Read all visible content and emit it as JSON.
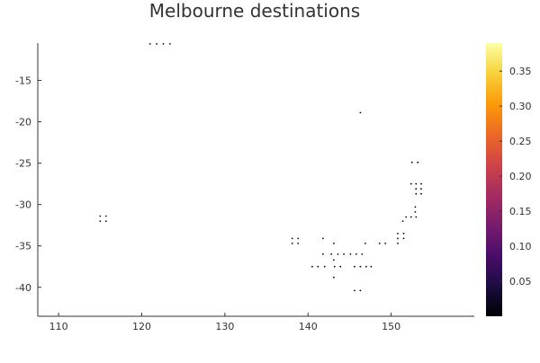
{
  "chart_data": {
    "type": "scatter",
    "title": "Melbourne destinations",
    "xlabel": "",
    "ylabel": "",
    "xlim": [
      107.5,
      160
    ],
    "ylim": [
      -43.5,
      -10.5
    ],
    "xticks": [
      110,
      120,
      130,
      140,
      150
    ],
    "yticks": [
      -15,
      -20,
      -25,
      -30,
      -35,
      -40
    ],
    "xtick_labels": [
      "110",
      "120",
      "130",
      "140",
      "150"
    ],
    "ytick_labels": [
      "-15",
      "-20",
      "-25",
      "-30",
      "-35",
      "-40"
    ],
    "grid": false,
    "legend": "none",
    "marker_color": "#000000",
    "points": [
      {
        "x": 121.0,
        "y": -10.6
      },
      {
        "x": 121.8,
        "y": -10.6
      },
      {
        "x": 122.6,
        "y": -10.6
      },
      {
        "x": 123.4,
        "y": -10.6
      },
      {
        "x": 146.3,
        "y": -18.9
      },
      {
        "x": 152.5,
        "y": -24.9
      },
      {
        "x": 153.2,
        "y": -24.9
      },
      {
        "x": 152.4,
        "y": -27.5
      },
      {
        "x": 153.0,
        "y": -27.5
      },
      {
        "x": 153.6,
        "y": -27.5
      },
      {
        "x": 153.0,
        "y": -28.1
      },
      {
        "x": 153.6,
        "y": -28.1
      },
      {
        "x": 153.0,
        "y": -28.7
      },
      {
        "x": 153.6,
        "y": -28.7
      },
      {
        "x": 152.9,
        "y": -30.3
      },
      {
        "x": 152.9,
        "y": -30.9
      },
      {
        "x": 151.8,
        "y": -31.5
      },
      {
        "x": 152.4,
        "y": -31.5
      },
      {
        "x": 153.0,
        "y": -31.5
      },
      {
        "x": 151.4,
        "y": -32.0
      },
      {
        "x": 115.0,
        "y": -31.4
      },
      {
        "x": 115.7,
        "y": -31.4
      },
      {
        "x": 115.0,
        "y": -32.0
      },
      {
        "x": 115.7,
        "y": -32.0
      },
      {
        "x": 150.8,
        "y": -33.5
      },
      {
        "x": 151.5,
        "y": -33.5
      },
      {
        "x": 150.8,
        "y": -34.1
      },
      {
        "x": 151.5,
        "y": -34.1
      },
      {
        "x": 138.1,
        "y": -34.1
      },
      {
        "x": 138.8,
        "y": -34.1
      },
      {
        "x": 141.8,
        "y": -34.1
      },
      {
        "x": 150.8,
        "y": -34.7
      },
      {
        "x": 138.1,
        "y": -34.7
      },
      {
        "x": 138.8,
        "y": -34.7
      },
      {
        "x": 143.1,
        "y": -34.7
      },
      {
        "x": 146.9,
        "y": -34.7
      },
      {
        "x": 148.6,
        "y": -34.7
      },
      {
        "x": 149.3,
        "y": -34.7
      },
      {
        "x": 141.8,
        "y": -36.0
      },
      {
        "x": 142.8,
        "y": -36.0
      },
      {
        "x": 143.6,
        "y": -36.0
      },
      {
        "x": 144.3,
        "y": -36.0
      },
      {
        "x": 145.1,
        "y": -36.0
      },
      {
        "x": 145.8,
        "y": -36.0
      },
      {
        "x": 146.5,
        "y": -36.0
      },
      {
        "x": 143.1,
        "y": -36.7
      },
      {
        "x": 140.5,
        "y": -37.5
      },
      {
        "x": 141.2,
        "y": -37.5
      },
      {
        "x": 142.0,
        "y": -37.5
      },
      {
        "x": 143.2,
        "y": -37.5
      },
      {
        "x": 143.9,
        "y": -37.5
      },
      {
        "x": 145.6,
        "y": -37.5
      },
      {
        "x": 146.3,
        "y": -37.5
      },
      {
        "x": 147.0,
        "y": -37.5
      },
      {
        "x": 147.6,
        "y": -37.5
      },
      {
        "x": 143.1,
        "y": -38.8
      },
      {
        "x": 145.6,
        "y": -40.4
      },
      {
        "x": 146.3,
        "y": -40.4
      }
    ],
    "colorbar": {
      "range": [
        0,
        0.39
      ],
      "ticks": [
        0.05,
        0.1,
        0.15,
        0.2,
        0.25,
        0.3,
        0.35
      ],
      "tick_labels": [
        "0.05",
        "0.10",
        "0.15",
        "0.20",
        "0.25",
        "0.30",
        "0.35"
      ],
      "colormap": "inferno",
      "stops": [
        "#000004",
        "#1b0c41",
        "#4a0c6b",
        "#781c6d",
        "#a52c60",
        "#cf4446",
        "#ed6925",
        "#fb9b06",
        "#f7d13d",
        "#fcffa4"
      ]
    }
  }
}
